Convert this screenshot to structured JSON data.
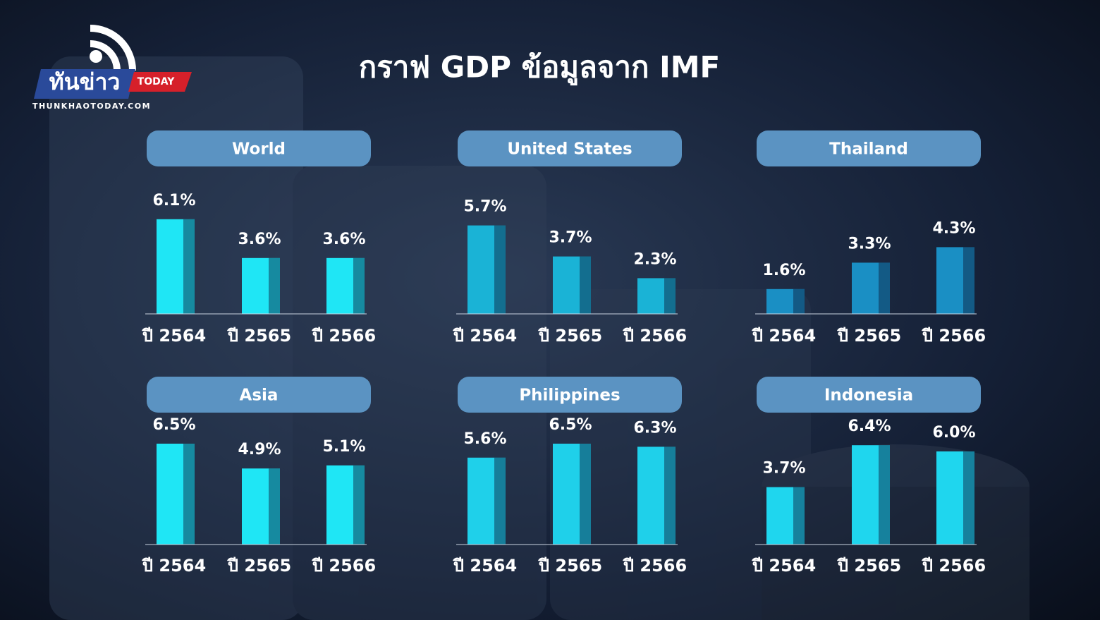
{
  "title": "กราฟ GDP ข้อมูลจาก IMF",
  "logo": {
    "name": "ทันข่าว",
    "tag": "TODAY",
    "site": "THUNKHAOTODAY.COM"
  },
  "chart_data": [
    {
      "type": "bar",
      "title": "World",
      "categories": [
        "ปี 2564",
        "ปี 2565",
        "ปี 2566"
      ],
      "values": [
        6.1,
        3.6,
        3.6
      ],
      "value_labels": [
        "6.1%",
        "3.6%",
        "3.6%"
      ],
      "color": "#1fe6f5"
    },
    {
      "type": "bar",
      "title": "United States",
      "categories": [
        "ปี 2564",
        "ปี 2565",
        "ปี 2566"
      ],
      "values": [
        5.7,
        3.7,
        2.3
      ],
      "value_labels": [
        "5.7%",
        "3.7%",
        "2.3%"
      ],
      "color": "#1ab3d6"
    },
    {
      "type": "bar",
      "title": "Thailand",
      "categories": [
        "ปี 2564",
        "ปี 2565",
        "ปี 2566"
      ],
      "values": [
        1.6,
        3.3,
        4.3
      ],
      "value_labels": [
        "1.6%",
        "3.3%",
        "4.3%"
      ],
      "color": "#1a8fc4"
    },
    {
      "type": "bar",
      "title": "Asia",
      "categories": [
        "ปี 2564",
        "ปี 2565",
        "ปี 2566"
      ],
      "values": [
        6.5,
        4.9,
        5.1
      ],
      "value_labels": [
        "6.5%",
        "4.9%",
        "5.1%"
      ],
      "color": "#1fe6f5"
    },
    {
      "type": "bar",
      "title": "Philippines",
      "categories": [
        "ปี 2564",
        "ปี 2565",
        "ปี 2566"
      ],
      "values": [
        5.6,
        6.5,
        6.3
      ],
      "value_labels": [
        "5.6%",
        "6.5%",
        "6.3%"
      ],
      "color": "#1fd0ea"
    },
    {
      "type": "bar",
      "title": "Indonesia",
      "categories": [
        "ปี 2564",
        "ปี 2565",
        "ปี 2566"
      ],
      "values": [
        3.7,
        6.4,
        6.0
      ],
      "value_labels": [
        "3.7%",
        "6.4%",
        "6.0%"
      ],
      "color": "#1fd6ee"
    }
  ]
}
